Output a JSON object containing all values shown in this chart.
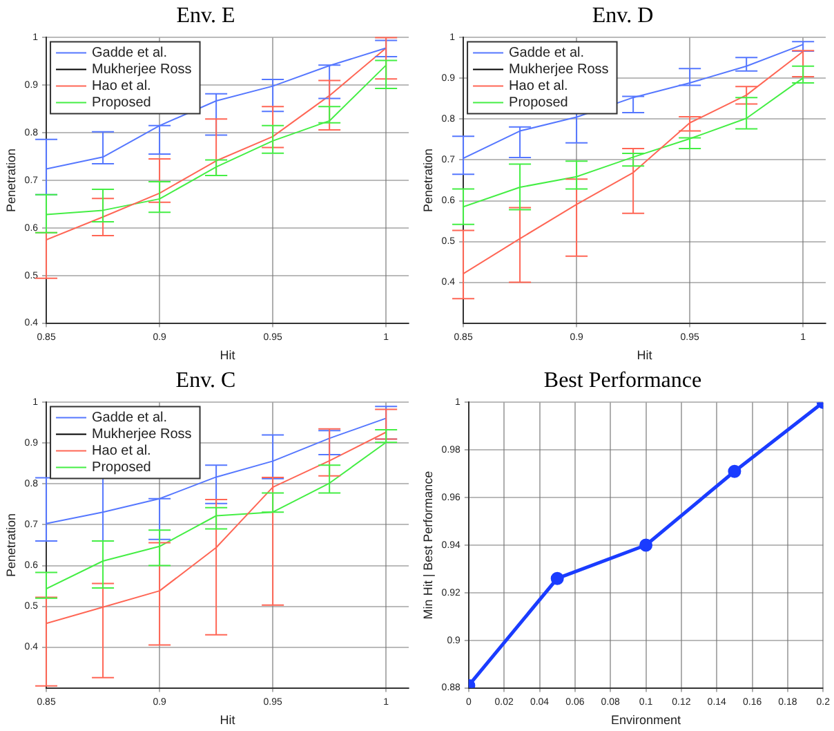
{
  "chart_data": [
    {
      "type": "line",
      "title": "Env. E",
      "xlabel": "Hit",
      "ylabel": "Penetration",
      "x": [
        0.85,
        0.875,
        0.9,
        0.925,
        0.95,
        0.975,
        1
      ],
      "xlim": [
        0.85,
        1.01
      ],
      "xticks": [
        0.85,
        0.9,
        0.95,
        1
      ],
      "ylim": [
        0.4,
        1
      ],
      "yticks": [
        0.4,
        0.5,
        0.6,
        0.7,
        0.8,
        0.9,
        1
      ],
      "grid": true,
      "legend": "top left",
      "series": [
        {
          "name": "Gadde et al.",
          "color": "#5577ff",
          "values": [
            0.724,
            0.749,
            0.815,
            0.867,
            0.898,
            0.941,
            0.978
          ],
          "errors": [
            [
              0.67,
              0.786
            ],
            [
              0.735,
              0.802
            ],
            [
              0.755,
              0.815
            ],
            [
              0.795,
              0.882
            ],
            [
              0.845,
              0.912
            ],
            [
              0.872,
              0.942
            ],
            [
              0.96,
              0.994
            ]
          ]
        },
        {
          "name": "Mukherjee Ross",
          "color": "#000000",
          "values": [
            null,
            null,
            null,
            null,
            null,
            null,
            null
          ]
        },
        {
          "name": "Hao et al.",
          "color": "#ff6655",
          "values": [
            0.575,
            0.623,
            0.673,
            0.741,
            0.792,
            0.878,
            0.978
          ],
          "errors": [
            [
              0.494,
              0.59
            ],
            [
              0.584,
              0.662
            ],
            [
              0.654,
              0.745
            ],
            [
              0.71,
              0.829
            ],
            [
              0.769,
              0.855
            ],
            [
              0.806,
              0.91
            ],
            [
              0.913,
              1
            ]
          ]
        },
        {
          "name": "Proposed",
          "color": "#44ee44",
          "values": [
            0.628,
            0.637,
            0.661,
            0.728,
            0.783,
            0.825,
            0.942
          ],
          "errors": [
            [
              0.59,
              0.67
            ],
            [
              0.613,
              0.681
            ],
            [
              0.633,
              0.697
            ],
            [
              0.71,
              0.743
            ],
            [
              0.757,
              0.815
            ],
            [
              0.821,
              0.855
            ],
            [
              0.893,
              0.952
            ]
          ]
        }
      ]
    },
    {
      "type": "line",
      "title": "Env. D",
      "xlabel": "Hit",
      "ylabel": "Penetration",
      "x": [
        0.85,
        0.875,
        0.9,
        0.925,
        0.95,
        0.975,
        1
      ],
      "xlim": [
        0.85,
        1.01
      ],
      "xticks": [
        0.85,
        0.9,
        0.95,
        1
      ],
      "ylim": [
        0.3,
        1
      ],
      "yticks": [
        0.4,
        0.5,
        0.6,
        0.7,
        0.8,
        0.9,
        1
      ],
      "grid": true,
      "legend": "top left",
      "series": [
        {
          "name": "Gadde et al.",
          "color": "#5577ff",
          "values": [
            0.704,
            0.771,
            0.805,
            0.853,
            0.889,
            0.93,
            0.983
          ],
          "errors": [
            [
              0.665,
              0.758
            ],
            [
              0.706,
              0.781
            ],
            [
              0.742,
              0.82
            ],
            [
              0.816,
              0.856
            ],
            [
              0.883,
              0.924
            ],
            [
              0.918,
              0.951
            ],
            [
              0.967,
              0.99
            ]
          ]
        },
        {
          "name": "Mukherjee Ross",
          "color": "#000000",
          "values": [
            null,
            null,
            null,
            null,
            null,
            null,
            null
          ]
        },
        {
          "name": "Hao et al.",
          "color": "#ff6655",
          "values": [
            0.421,
            0.507,
            0.591,
            0.669,
            0.791,
            0.859,
            0.966
          ],
          "errors": [
            [
              0.36,
              0.527
            ],
            [
              0.4,
              0.583
            ],
            [
              0.464,
              0.653
            ],
            [
              0.569,
              0.728
            ],
            [
              0.771,
              0.806
            ],
            [
              0.837,
              0.88
            ],
            [
              0.904,
              0.968
            ]
          ]
        },
        {
          "name": "Proposed",
          "color": "#44ee44",
          "values": [
            0.585,
            0.633,
            0.659,
            0.707,
            0.752,
            0.802,
            0.901
          ],
          "errors": [
            [
              0.542,
              0.629
            ],
            [
              0.578,
              0.69
            ],
            [
              0.629,
              0.697
            ],
            [
              0.685,
              0.716
            ],
            [
              0.728,
              0.754
            ],
            [
              0.776,
              0.853
            ],
            [
              0.889,
              0.93
            ]
          ]
        }
      ]
    },
    {
      "type": "line",
      "title": "Env. C",
      "xlabel": "Hit",
      "ylabel": "Penetration",
      "x": [
        0.85,
        0.875,
        0.9,
        0.925,
        0.95,
        0.975,
        1
      ],
      "xlim": [
        0.85,
        1.01
      ],
      "xticks": [
        0.85,
        0.9,
        0.95,
        1
      ],
      "ylim": [
        0.3,
        1
      ],
      "yticks": [
        0.4,
        0.5,
        0.6,
        0.7,
        0.8,
        0.9,
        1
      ],
      "grid": true,
      "legend": "top left",
      "series": [
        {
          "name": "Gadde et al.",
          "color": "#5577ff",
          "values": [
            0.703,
            0.731,
            0.764,
            0.817,
            0.856,
            0.912,
            0.961
          ],
          "errors": [
            [
              0.66,
              0.815
            ],
            [
              0.66,
              0.82
            ],
            [
              0.664,
              0.764
            ],
            [
              0.752,
              0.846
            ],
            [
              0.813,
              0.92
            ],
            [
              0.872,
              0.931
            ],
            [
              0.91,
              0.99
            ]
          ]
        },
        {
          "name": "Mukherjee Ross",
          "color": "#000000",
          "values": [
            null,
            null,
            null,
            null,
            null,
            null,
            null
          ]
        },
        {
          "name": "Hao et al.",
          "color": "#ff6655",
          "values": [
            0.458,
            0.498,
            0.538,
            0.644,
            0.792,
            0.857,
            0.927
          ],
          "errors": [
            [
              0.305,
              0.522
            ],
            [
              0.325,
              0.556
            ],
            [
              0.405,
              0.656
            ],
            [
              0.43,
              0.762
            ],
            [
              0.503,
              0.816
            ],
            [
              0.82,
              0.935
            ],
            [
              0.91,
              0.983
            ]
          ]
        },
        {
          "name": "Proposed",
          "color": "#44ee44",
          "values": [
            0.543,
            0.611,
            0.647,
            0.722,
            0.731,
            0.802,
            0.902
          ],
          "errors": [
            [
              0.52,
              0.583
            ],
            [
              0.545,
              0.66
            ],
            [
              0.6,
              0.687
            ],
            [
              0.69,
              0.742
            ],
            [
              0.731,
              0.778
            ],
            [
              0.778,
              0.846
            ],
            [
              0.902,
              0.933
            ]
          ]
        }
      ]
    },
    {
      "type": "line",
      "title": "Best Performance",
      "xlabel": "Environment",
      "ylabel": "Min Hit | Best Performance",
      "x": [
        0,
        0.05,
        0.1,
        0.15,
        0.2
      ],
      "xlim": [
        0,
        0.2
      ],
      "xticks": [
        0,
        0.02,
        0.04,
        0.06,
        0.08,
        0.1,
        0.12,
        0.14,
        0.16,
        0.18,
        0.2
      ],
      "ylim": [
        0.88,
        1
      ],
      "yticks": [
        0.88,
        0.9,
        0.92,
        0.94,
        0.96,
        0.98,
        1
      ],
      "grid": true,
      "marker": "circle",
      "series": [
        {
          "color": "#1a3cff",
          "values": [
            0.881,
            0.926,
            0.94,
            0.971,
            1
          ]
        }
      ]
    }
  ]
}
